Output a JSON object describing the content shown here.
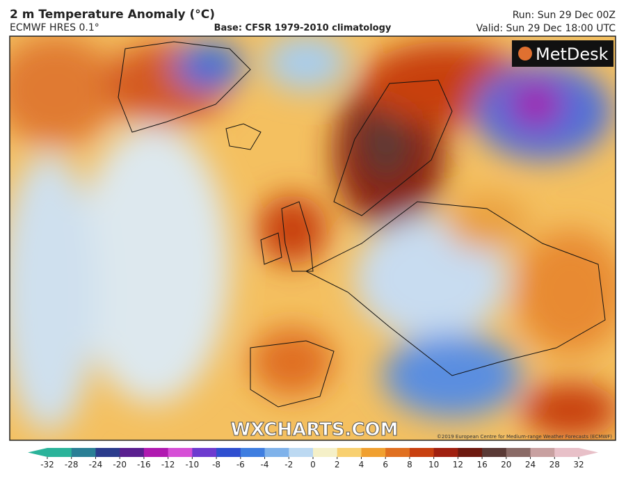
{
  "header": {
    "title": "2 m Temperature Anomaly (°C)",
    "model": "ECMWF HRES 0.1°",
    "base": "Base: CFSR 1979-2010 climatology",
    "run": "Run: Sun 29 Dec 00Z",
    "valid": "Valid: Sun 29 Dec 18:00 UTC"
  },
  "map": {
    "logo": "MetDesk",
    "watermark": "WXCHARTS.COM",
    "copyright": "©2019 European Centre for Medium-range Weather Forecasts (ECMWF)"
  },
  "colorbar": {
    "ticks": [
      -32,
      -28,
      -24,
      -20,
      -16,
      -12,
      -10,
      -8,
      -6,
      -4,
      -2,
      0,
      2,
      4,
      6,
      8,
      10,
      12,
      16,
      20,
      24,
      28,
      32
    ],
    "colors": [
      "#2bb39a",
      "#2a7f95",
      "#2b3c8c",
      "#5a1f8f",
      "#b01ab0",
      "#d64fd6",
      "#6d3bcf",
      "#2f4fd0",
      "#3f7ee0",
      "#7fb2ea",
      "#bcd9f2",
      "#f5f0c8",
      "#f8d070",
      "#f0a030",
      "#e07020",
      "#c84010",
      "#a02010",
      "#6d1a10",
      "#5a3a36",
      "#8a6a66",
      "#c8a0a0",
      "#e8c0c8"
    ]
  }
}
